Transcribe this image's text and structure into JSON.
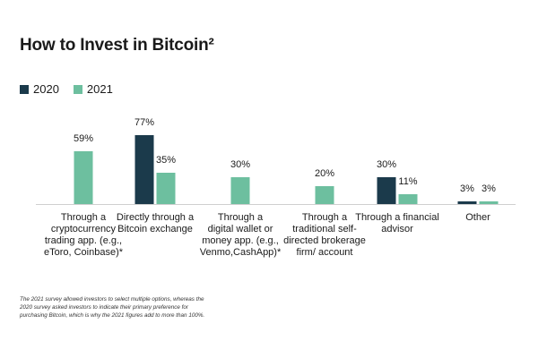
{
  "chart_data": {
    "type": "bar",
    "title": "How to Invest in Bitcoin²",
    "legend_placement": "top-left",
    "categories": [
      [
        "Through a",
        "cryptocurrency",
        "trading app. (e.g.,",
        "eToro, Coinbase)*"
      ],
      [
        "Directly through a",
        "Bitcoin exchange"
      ],
      [
        "Through a",
        "digital wallet or",
        "money app. (e.g.,",
        "Venmo,CashApp)*"
      ],
      [
        "Through a",
        "traditional self-",
        "directed brokerage",
        "firm/ account"
      ],
      [
        "Through a financial",
        "advisor"
      ],
      [
        "Other"
      ]
    ],
    "series": [
      {
        "name": "2020",
        "color": "#1b3a4b",
        "values": [
          null,
          77,
          null,
          null,
          30,
          3
        ],
        "labels": [
          "",
          "77%",
          "",
          "",
          "30%",
          "3%"
        ]
      },
      {
        "name": "2021",
        "color": "#6dbf9f",
        "values": [
          59,
          35,
          30,
          20,
          11,
          3
        ],
        "labels": [
          "59%",
          "35%",
          "30%",
          "20%",
          "11%",
          "3%"
        ]
      }
    ],
    "ylim": [
      0,
      80
    ],
    "grid": false
  },
  "footnote": "The 2021 survey allowed investors to select multiple options, whereas the 2020 survey asked investors to indicate their primary preference for purchasing Bitcoin, which is why the 2021 figures add to more than 100%."
}
